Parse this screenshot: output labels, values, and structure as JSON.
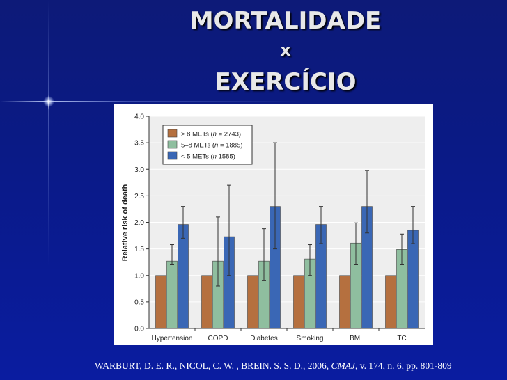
{
  "slide": {
    "title_line1": "MORTALIDADE",
    "title_line2": "x",
    "title_line3": "EXERCÍCIO",
    "citation_pre": "WARBURT, D. E. R., NICOL, C. W. , BREIN. S. S. D., 2006,",
    "citation_journal": "CMAJ",
    "citation_post": ", v. 174, n. 6, pp. 801-809"
  },
  "chart_data": {
    "type": "bar",
    "ylabel": "Relative risk of death",
    "xlabel": "",
    "ylim": [
      0,
      4.0
    ],
    "yticks": [
      "0.0",
      "0.5",
      "1.0",
      "1.5",
      "2.0",
      "2.5",
      "3.0",
      "3.5",
      "4.0"
    ],
    "categories": [
      "Hypertension",
      "COPD",
      "Diabetes",
      "Smoking",
      "BMI",
      "TC"
    ],
    "legend": [
      {
        "pre": "> 8 METs (",
        "n": "n",
        "post": " = 2743)"
      },
      {
        "pre": "5–8 METs (",
        "n": "n",
        "post": " = 1885)"
      },
      {
        "pre": "< 5 METs (",
        "n": "n",
        "post": " 1585)"
      }
    ],
    "series": [
      {
        "name": "> 8 METs (n = 2743)",
        "color": "#b5703f",
        "values": [
          1.0,
          1.0,
          1.0,
          1.0,
          1.0,
          1.0
        ],
        "err": [
          null,
          null,
          null,
          null,
          null,
          null
        ]
      },
      {
        "name": "5–8 METs (n = 1885)",
        "color": "#8fbe9f",
        "values": [
          1.27,
          1.27,
          1.27,
          1.31,
          1.61,
          1.49
        ],
        "err": [
          [
            1.2,
            1.58
          ],
          [
            0.8,
            2.1
          ],
          [
            0.9,
            1.88
          ],
          [
            1.0,
            1.58
          ],
          [
            1.2,
            1.99
          ],
          [
            1.2,
            1.78
          ]
        ]
      },
      {
        "name": "< 5 METs (n 1585)",
        "color": "#3a67b5",
        "values": [
          1.96,
          1.73,
          2.3,
          1.96,
          2.3,
          1.85
        ],
        "err": [
          [
            1.7,
            2.3
          ],
          [
            1.0,
            2.7
          ],
          [
            1.5,
            3.5
          ],
          [
            1.6,
            2.3
          ],
          [
            1.8,
            2.98
          ],
          [
            1.6,
            2.3
          ]
        ]
      }
    ]
  }
}
